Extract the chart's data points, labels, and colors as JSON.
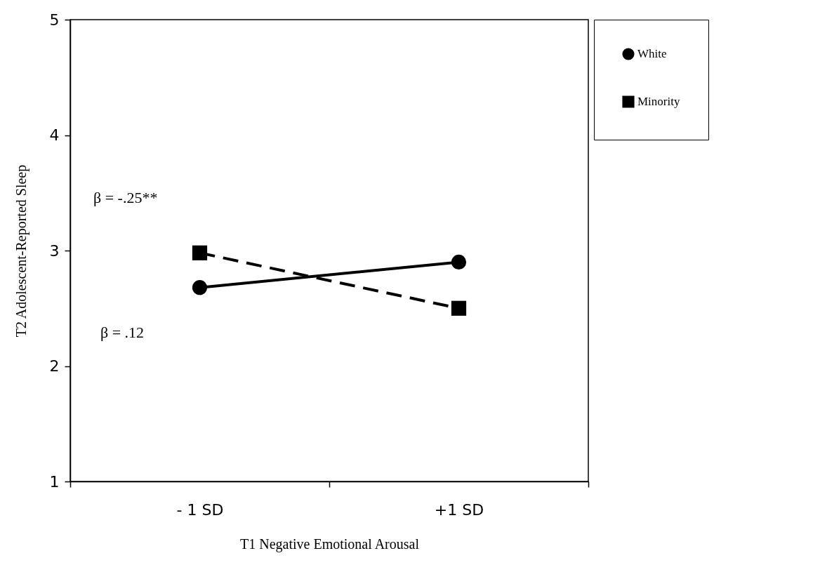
{
  "chart_data": {
    "type": "line",
    "xlabel": "T1 Negative Emotional Arousal",
    "ylabel": "T2 Adolescent-Reported Sleep",
    "categories": [
      "- 1 SD",
      "+1 SD"
    ],
    "series": [
      {
        "name": "White",
        "color": "#000000",
        "values": [
          2.68,
          2.9
        ],
        "marker": "circle",
        "line_style": "solid"
      },
      {
        "name": "Minority",
        "color": "#000000",
        "values": [
          2.98,
          2.5
        ],
        "marker": "square",
        "line_style": "dashed"
      }
    ],
    "ylim": [
      1,
      5
    ],
    "yticks": [
      1,
      2,
      3,
      4,
      5
    ],
    "grid": false,
    "legend": "right",
    "annotations": [
      "β = -.25**",
      "β = .12"
    ]
  }
}
